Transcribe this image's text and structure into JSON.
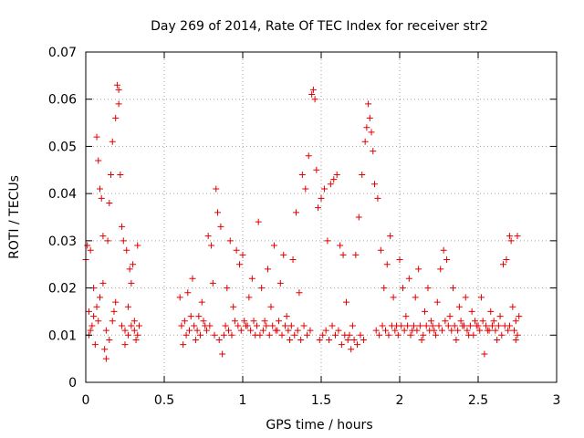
{
  "chart_data": {
    "type": "scatter",
    "title": "Day 269 of 2014, Rate Of TEC Index for receiver str2",
    "xlabel": "GPS time / hours",
    "ylabel": "ROTI / TECUs",
    "xlim": [
      0,
      3
    ],
    "ylim": [
      0,
      0.07
    ],
    "x_ticks": [
      0,
      0.5,
      1,
      1.5,
      2,
      2.5,
      3
    ],
    "x_tick_labels": [
      "0",
      "0.5",
      "1",
      "1.5",
      "2",
      "2.5",
      "3"
    ],
    "y_ticks": [
      0,
      0.01,
      0.02,
      0.03,
      0.04,
      0.05,
      0.06,
      0.07
    ],
    "y_tick_labels": [
      "0",
      "0.01",
      "0.02",
      "0.03",
      "0.04",
      "0.05",
      "0.06",
      "0.07"
    ],
    "grid": true,
    "marker": "+",
    "color": "#e00000",
    "series": [
      {
        "name": "ROTI",
        "points": [
          [
            0.0,
            0.026
          ],
          [
            0.01,
            0.029
          ],
          [
            0.02,
            0.015
          ],
          [
            0.02,
            0.01
          ],
          [
            0.03,
            0.028
          ],
          [
            0.04,
            0.012
          ],
          [
            0.05,
            0.02
          ],
          [
            0.06,
            0.008
          ],
          [
            0.07,
            0.052
          ],
          [
            0.08,
            0.047
          ],
          [
            0.08,
            0.013
          ],
          [
            0.09,
            0.041
          ],
          [
            0.1,
            0.039
          ],
          [
            0.11,
            0.031
          ],
          [
            0.12,
            0.007
          ],
          [
            0.13,
            0.005
          ],
          [
            0.14,
            0.03
          ],
          [
            0.15,
            0.038
          ],
          [
            0.16,
            0.044
          ],
          [
            0.17,
            0.051
          ],
          [
            0.18,
            0.015
          ],
          [
            0.19,
            0.056
          ],
          [
            0.2,
            0.063
          ],
          [
            0.21,
            0.062
          ],
          [
            0.21,
            0.059
          ],
          [
            0.22,
            0.044
          ],
          [
            0.23,
            0.033
          ],
          [
            0.24,
            0.03
          ],
          [
            0.25,
            0.011
          ],
          [
            0.26,
            0.028
          ],
          [
            0.27,
            0.016
          ],
          [
            0.28,
            0.024
          ],
          [
            0.29,
            0.021
          ],
          [
            0.3,
            0.025
          ],
          [
            0.31,
            0.013
          ],
          [
            0.32,
            0.009
          ],
          [
            0.33,
            0.029
          ],
          [
            0.34,
            0.012
          ],
          [
            0.03,
            0.011
          ],
          [
            0.05,
            0.014
          ],
          [
            0.07,
            0.016
          ],
          [
            0.09,
            0.018
          ],
          [
            0.11,
            0.021
          ],
          [
            0.13,
            0.011
          ],
          [
            0.15,
            0.009
          ],
          [
            0.17,
            0.013
          ],
          [
            0.19,
            0.017
          ],
          [
            0.23,
            0.012
          ],
          [
            0.25,
            0.008
          ],
          [
            0.27,
            0.01
          ],
          [
            0.29,
            0.012
          ],
          [
            0.31,
            0.011
          ],
          [
            0.33,
            0.01
          ],
          [
            0.6,
            0.018
          ],
          [
            0.62,
            0.008
          ],
          [
            0.63,
            0.013
          ],
          [
            0.65,
            0.019
          ],
          [
            0.66,
            0.011
          ],
          [
            0.68,
            0.022
          ],
          [
            0.7,
            0.009
          ],
          [
            0.72,
            0.014
          ],
          [
            0.74,
            0.017
          ],
          [
            0.76,
            0.012
          ],
          [
            0.78,
            0.031
          ],
          [
            0.8,
            0.029
          ],
          [
            0.81,
            0.021
          ],
          [
            0.83,
            0.041
          ],
          [
            0.84,
            0.036
          ],
          [
            0.86,
            0.033
          ],
          [
            0.87,
            0.006
          ],
          [
            0.88,
            0.01
          ],
          [
            0.9,
            0.02
          ],
          [
            0.92,
            0.03
          ],
          [
            0.94,
            0.016
          ],
          [
            0.96,
            0.028
          ],
          [
            0.98,
            0.025
          ],
          [
            1.0,
            0.027
          ],
          [
            1.02,
            0.012
          ],
          [
            1.04,
            0.018
          ],
          [
            1.06,
            0.022
          ],
          [
            1.08,
            0.01
          ],
          [
            1.1,
            0.034
          ],
          [
            1.12,
            0.02
          ],
          [
            1.14,
            0.013
          ],
          [
            1.16,
            0.024
          ],
          [
            1.18,
            0.016
          ],
          [
            1.2,
            0.029
          ],
          [
            1.22,
            0.011
          ],
          [
            1.24,
            0.021
          ],
          [
            1.26,
            0.027
          ],
          [
            1.28,
            0.014
          ],
          [
            1.3,
            0.009
          ],
          [
            1.32,
            0.026
          ],
          [
            1.34,
            0.036
          ],
          [
            1.36,
            0.019
          ],
          [
            1.38,
            0.044
          ],
          [
            1.4,
            0.041
          ],
          [
            1.42,
            0.048
          ],
          [
            1.44,
            0.061
          ],
          [
            1.45,
            0.062
          ],
          [
            1.46,
            0.06
          ],
          [
            1.47,
            0.045
          ],
          [
            1.48,
            0.037
          ],
          [
            1.5,
            0.039
          ],
          [
            1.52,
            0.041
          ],
          [
            1.54,
            0.03
          ],
          [
            1.56,
            0.042
          ],
          [
            1.58,
            0.043
          ],
          [
            1.6,
            0.044
          ],
          [
            1.62,
            0.029
          ],
          [
            1.64,
            0.027
          ],
          [
            1.66,
            0.017
          ],
          [
            1.68,
            0.01
          ],
          [
            1.7,
            0.012
          ],
          [
            1.72,
            0.027
          ],
          [
            1.74,
            0.035
          ],
          [
            1.76,
            0.044
          ],
          [
            1.78,
            0.051
          ],
          [
            1.79,
            0.054
          ],
          [
            1.8,
            0.059
          ],
          [
            1.81,
            0.056
          ],
          [
            1.82,
            0.053
          ],
          [
            1.83,
            0.049
          ],
          [
            1.84,
            0.042
          ],
          [
            1.86,
            0.039
          ],
          [
            1.88,
            0.028
          ],
          [
            1.9,
            0.02
          ],
          [
            1.92,
            0.025
          ],
          [
            1.94,
            0.031
          ],
          [
            1.96,
            0.018
          ],
          [
            1.98,
            0.012
          ],
          [
            2.0,
            0.026
          ],
          [
            2.02,
            0.02
          ],
          [
            2.04,
            0.014
          ],
          [
            2.06,
            0.022
          ],
          [
            2.08,
            0.011
          ],
          [
            2.1,
            0.018
          ],
          [
            2.12,
            0.024
          ],
          [
            2.14,
            0.009
          ],
          [
            2.16,
            0.015
          ],
          [
            2.18,
            0.02
          ],
          [
            2.2,
            0.013
          ],
          [
            2.22,
            0.011
          ],
          [
            2.24,
            0.017
          ],
          [
            2.26,
            0.024
          ],
          [
            2.28,
            0.028
          ],
          [
            2.3,
            0.026
          ],
          [
            2.32,
            0.014
          ],
          [
            2.34,
            0.02
          ],
          [
            2.36,
            0.009
          ],
          [
            2.38,
            0.016
          ],
          [
            2.4,
            0.012
          ],
          [
            2.42,
            0.018
          ],
          [
            2.44,
            0.01
          ],
          [
            2.46,
            0.015
          ],
          [
            2.48,
            0.013
          ],
          [
            2.5,
            0.012
          ],
          [
            2.52,
            0.018
          ],
          [
            2.54,
            0.006
          ],
          [
            2.56,
            0.011
          ],
          [
            2.58,
            0.015
          ],
          [
            2.6,
            0.013
          ],
          [
            2.62,
            0.009
          ],
          [
            2.64,
            0.014
          ],
          [
            2.66,
            0.025
          ],
          [
            2.68,
            0.026
          ],
          [
            2.7,
            0.031
          ],
          [
            2.71,
            0.03
          ],
          [
            2.72,
            0.016
          ],
          [
            2.73,
            0.011
          ],
          [
            2.74,
            0.013
          ],
          [
            2.75,
            0.031
          ],
          [
            2.76,
            0.014
          ],
          [
            0.61,
            0.012
          ],
          [
            0.64,
            0.01
          ],
          [
            0.67,
            0.014
          ],
          [
            0.69,
            0.012
          ],
          [
            0.71,
            0.011
          ],
          [
            0.73,
            0.01
          ],
          [
            0.75,
            0.013
          ],
          [
            0.77,
            0.011
          ],
          [
            0.79,
            0.012
          ],
          [
            0.82,
            0.01
          ],
          [
            0.85,
            0.009
          ],
          [
            0.89,
            0.012
          ],
          [
            0.91,
            0.011
          ],
          [
            0.93,
            0.01
          ],
          [
            0.95,
            0.013
          ],
          [
            0.97,
            0.012
          ],
          [
            0.99,
            0.011
          ],
          [
            1.01,
            0.013
          ],
          [
            1.03,
            0.012
          ],
          [
            1.05,
            0.011
          ],
          [
            1.07,
            0.013
          ],
          [
            1.09,
            0.012
          ],
          [
            1.11,
            0.01
          ],
          [
            1.13,
            0.011
          ],
          [
            1.15,
            0.012
          ],
          [
            1.17,
            0.01
          ],
          [
            1.19,
            0.012
          ],
          [
            1.21,
            0.011
          ],
          [
            1.23,
            0.013
          ],
          [
            1.25,
            0.01
          ],
          [
            1.27,
            0.012
          ],
          [
            1.29,
            0.011
          ],
          [
            1.31,
            0.012
          ],
          [
            1.33,
            0.01
          ],
          [
            1.35,
            0.011
          ],
          [
            1.37,
            0.009
          ],
          [
            1.39,
            0.012
          ],
          [
            1.41,
            0.01
          ],
          [
            1.43,
            0.011
          ],
          [
            1.49,
            0.009
          ],
          [
            1.51,
            0.01
          ],
          [
            1.53,
            0.011
          ],
          [
            1.55,
            0.009
          ],
          [
            1.57,
            0.012
          ],
          [
            1.59,
            0.01
          ],
          [
            1.61,
            0.011
          ],
          [
            1.63,
            0.008
          ],
          [
            1.65,
            0.01
          ],
          [
            1.67,
            0.009
          ],
          [
            1.69,
            0.007
          ],
          [
            1.71,
            0.009
          ],
          [
            1.73,
            0.008
          ],
          [
            1.75,
            0.01
          ],
          [
            1.77,
            0.009
          ],
          [
            1.85,
            0.011
          ],
          [
            1.87,
            0.01
          ],
          [
            1.89,
            0.012
          ],
          [
            1.91,
            0.011
          ],
          [
            1.93,
            0.01
          ],
          [
            1.95,
            0.012
          ],
          [
            1.97,
            0.011
          ],
          [
            1.99,
            0.01
          ],
          [
            2.01,
            0.012
          ],
          [
            2.03,
            0.011
          ],
          [
            2.05,
            0.012
          ],
          [
            2.07,
            0.01
          ],
          [
            2.09,
            0.012
          ],
          [
            2.11,
            0.011
          ],
          [
            2.13,
            0.012
          ],
          [
            2.15,
            0.01
          ],
          [
            2.17,
            0.012
          ],
          [
            2.19,
            0.011
          ],
          [
            2.21,
            0.012
          ],
          [
            2.23,
            0.01
          ],
          [
            2.25,
            0.012
          ],
          [
            2.27,
            0.011
          ],
          [
            2.29,
            0.013
          ],
          [
            2.31,
            0.012
          ],
          [
            2.33,
            0.011
          ],
          [
            2.35,
            0.012
          ],
          [
            2.37,
            0.011
          ],
          [
            2.39,
            0.013
          ],
          [
            2.41,
            0.012
          ],
          [
            2.43,
            0.011
          ],
          [
            2.45,
            0.012
          ],
          [
            2.47,
            0.01
          ],
          [
            2.49,
            0.012
          ],
          [
            2.51,
            0.011
          ],
          [
            2.53,
            0.013
          ],
          [
            2.55,
            0.012
          ],
          [
            2.57,
            0.011
          ],
          [
            2.59,
            0.012
          ],
          [
            2.61,
            0.011
          ],
          [
            2.63,
            0.012
          ],
          [
            2.65,
            0.01
          ],
          [
            2.67,
            0.012
          ],
          [
            2.69,
            0.011
          ],
          [
            2.7,
            0.012
          ],
          [
            2.74,
            0.009
          ],
          [
            2.75,
            0.01
          ]
        ]
      }
    ]
  }
}
